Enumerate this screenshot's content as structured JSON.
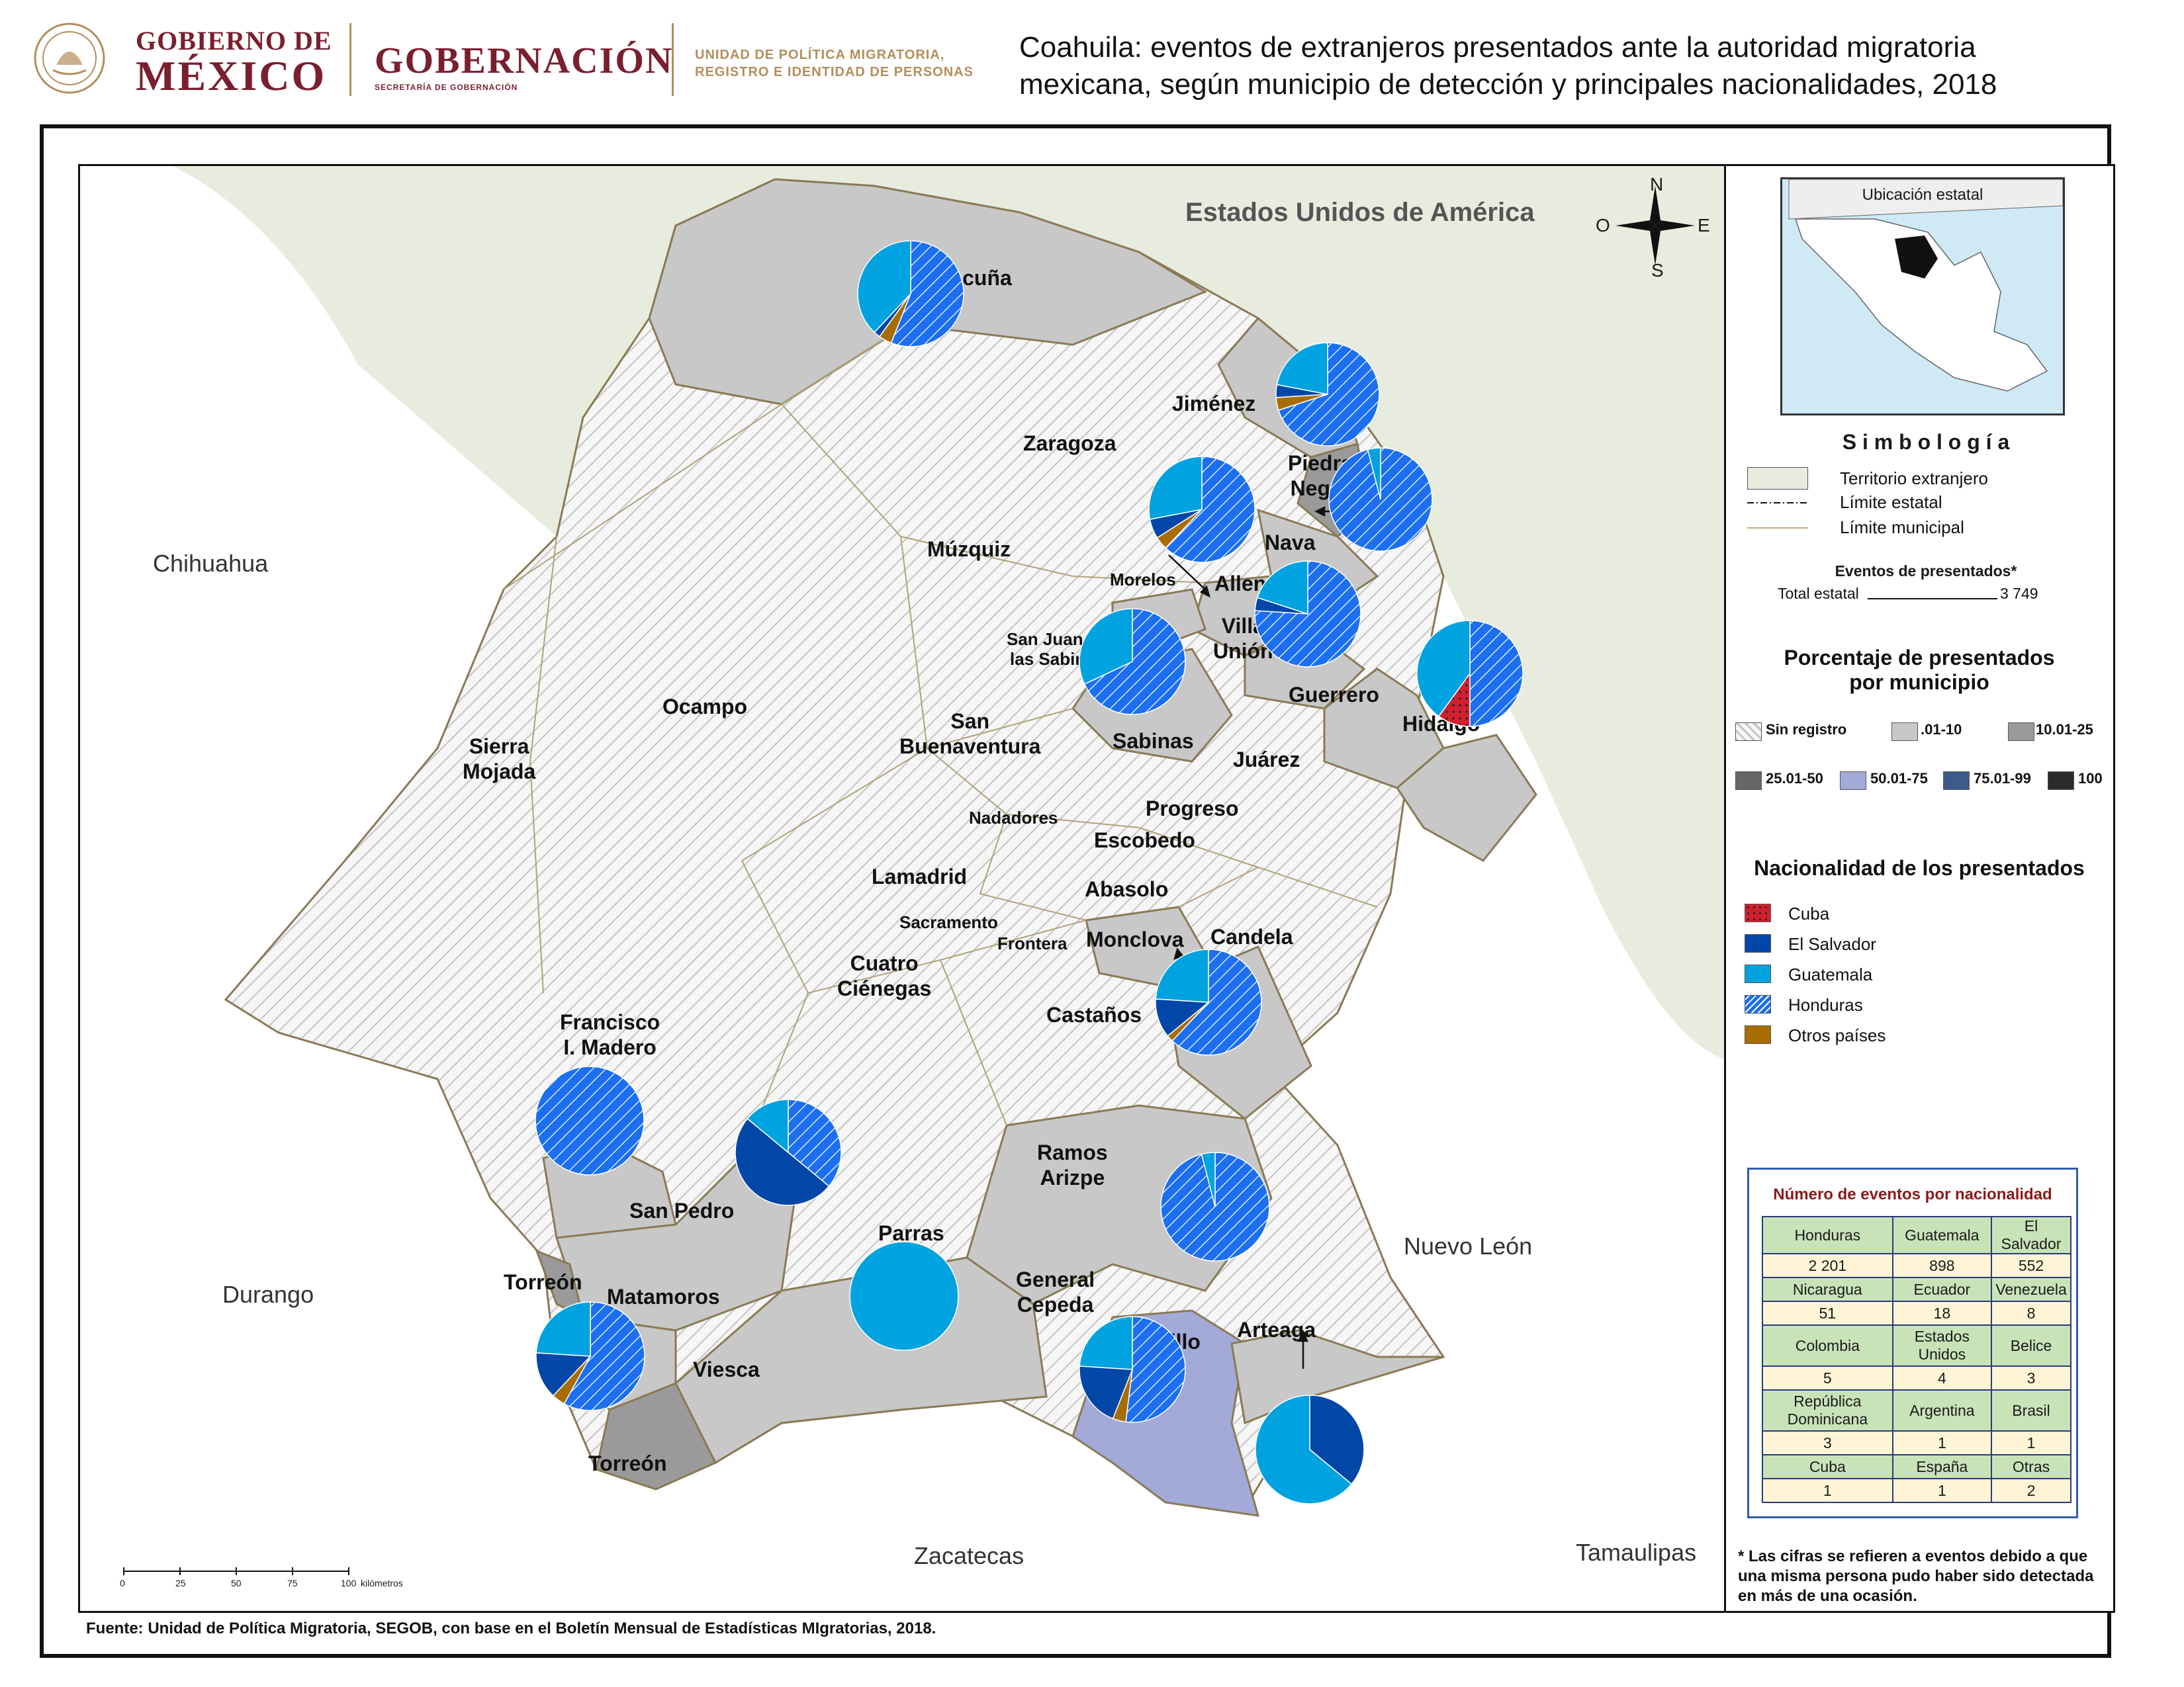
{
  "header": {
    "gobierno_de": "GOBIERNO DE",
    "mexico": "MÉXICO",
    "gobernacion": "GOBERNACIÓN",
    "secretaria": "SECRETARÍA DE GOBERNACIÓN",
    "unidad_line1": "UNIDAD DE POLÍTICA MIGRATORIA,",
    "unidad_line2": "REGISTRO E IDENTIDAD DE PERSONAS",
    "title_line1": "Coahuila: eventos de extranjeros presentados ante la autoridad migratoria",
    "title_line2": "mexicana, según municipio de detección y principales nacionalidades, 2018"
  },
  "map": {
    "outer_labels": {
      "usa": "Estados Unidos de América",
      "chihuahua": "Chihuahua",
      "durango": "Durango",
      "zacatecas": "Zacatecas",
      "nuevo_leon": "Nuevo León",
      "tamaulipas": "Tamaulipas"
    },
    "compass": {
      "n": "N",
      "s": "S",
      "e": "E",
      "o": "O"
    },
    "municipalities": {
      "acuna": "Acuña",
      "jimenez": "Jiménez",
      "zaragoza": "Zaragoza",
      "piedras_1": "Piedras",
      "piedras_2": "Negras",
      "nava": "Nava",
      "muzquiz": "Múzquiz",
      "morelos": "Morelos",
      "allende": "Allende",
      "villa_1": "Villa",
      "villa_2": "Unión",
      "sanjuan_1": "San Juan de",
      "sanjuan_2": "las Sabinas",
      "guerrero": "Guerrero",
      "hidalgo": "Hidalgo",
      "ocampo": "Ocampo",
      "sierra_1": "Sierra",
      "sierra_2": "Mojada",
      "sanbuena_1": "San",
      "sanbuena_2": "Buenaventura",
      "sabinas": "Sabinas",
      "juarez": "Juárez",
      "progreso": "Progreso",
      "nadadores": "Nadadores",
      "escobedo": "Escobedo",
      "lamadrid": "Lamadrid",
      "abasolo": "Abasolo",
      "sacramento": "Sacramento",
      "monclova": "Monclova",
      "candela": "Candela",
      "frontera": "Frontera",
      "cuatro_1": "Cuatro",
      "cuatro_2": "Ciénegas",
      "castanos": "Castaños",
      "francisco_1": "Francisco",
      "francisco_2": "I. Madero",
      "ramos_1": "Ramos",
      "ramos_2": "Arizpe",
      "sanpedro": "San Pedro",
      "parras": "Parras",
      "torreon_top": "Torreón",
      "matamoros": "Matamoros",
      "general_1": "General",
      "general_2": "Cepeda",
      "saltillo": "Saltillo",
      "arteaga": "Arteaga",
      "viesca": "Viesca",
      "torreon_bottom": "Torreón"
    },
    "pies": [
      {
        "id": "acuna",
        "honduras": 0.56,
        "guatemala": 0.38,
        "el_salvador": 0.02,
        "cuba": 0,
        "otros": 0.04
      },
      {
        "id": "jimenez",
        "honduras": 0.7,
        "guatemala": 0.22,
        "el_salvador": 0.04,
        "cuba": 0,
        "otros": 0.04
      },
      {
        "id": "piedras",
        "honduras": 0.96,
        "guatemala": 0.04,
        "el_salvador": 0,
        "cuba": 0,
        "otros": 0
      },
      {
        "id": "zaragoza",
        "honduras": 0.62,
        "guatemala": 0.28,
        "el_salvador": 0.06,
        "cuba": 0,
        "otros": 0.04
      },
      {
        "id": "villa_union",
        "honduras": 0.76,
        "guatemala": 0.2,
        "el_salvador": 0.04,
        "cuba": 0,
        "otros": 0
      },
      {
        "id": "hidalgo",
        "honduras": 0.5,
        "guatemala": 0.4,
        "el_salvador": 0,
        "cuba": 0.1,
        "otros": 0
      },
      {
        "id": "sabinas",
        "honduras": 0.68,
        "guatemala": 0.32,
        "el_salvador": 0,
        "cuba": 0,
        "otros": 0
      },
      {
        "id": "monclova",
        "honduras": 0.62,
        "guatemala": 0.24,
        "el_salvador": 0.12,
        "cuba": 0,
        "otros": 0.02
      },
      {
        "id": "francisco",
        "honduras": 1.0,
        "guatemala": 0,
        "el_salvador": 0,
        "cuba": 0,
        "otros": 0
      },
      {
        "id": "sanpedro",
        "honduras": 0.36,
        "guatemala": 0.14,
        "el_salvador": 0.5,
        "cuba": 0,
        "otros": 0
      },
      {
        "id": "ramos",
        "honduras": 0.96,
        "guatemala": 0.04,
        "el_salvador": 0,
        "cuba": 0,
        "otros": 0
      },
      {
        "id": "parras",
        "honduras": 0,
        "guatemala": 1.0,
        "el_salvador": 0,
        "cuba": 0,
        "otros": 0
      },
      {
        "id": "torreon",
        "honduras": 0.58,
        "guatemala": 0.24,
        "el_salvador": 0.14,
        "cuba": 0,
        "otros": 0.04
      },
      {
        "id": "saltillo",
        "honduras": 0.52,
        "guatemala": 0.24,
        "el_salvador": 0.2,
        "cuba": 0,
        "otros": 0.04
      },
      {
        "id": "arteaga",
        "honduras": 0,
        "guatemala": 0.64,
        "el_salvador": 0.36,
        "cuba": 0,
        "otros": 0
      }
    ],
    "scale": {
      "t0": "0",
      "t1": "25",
      "t2": "50",
      "t3": "75",
      "t4": "100",
      "unit": "kilómetros"
    }
  },
  "legend": {
    "inset_title": "Ubicación estatal",
    "symbology": "S i m b o l o g í a",
    "territorio": "Territorio extranjero",
    "limite_estatal": "Límite estatal",
    "limite_municipal": "Límite municipal",
    "eventos_head": "Eventos de presentados*",
    "total_label": "Total estatal",
    "total_value": "3 749",
    "porcentaje_1": "Porcentaje de presentados",
    "porcentaje_2": "por municipio",
    "classes": [
      "Sin registro",
      ".01-10",
      "10.01-25",
      "25.01-50",
      "50.01-75",
      "75.01-99",
      "100"
    ],
    "class_colors": [
      "#f4f4f4",
      "#c8c8c8",
      "#9a9a9a",
      "#666666",
      "#a3aad8",
      "#3c5a8a",
      "#2b2b2b"
    ],
    "nacionalidad_head": "Nacionalidad de los presentados",
    "nationalities": [
      "Cuba",
      "El Salvador",
      "Guatemala",
      "Honduras",
      "Otros países"
    ],
    "nat_colors": {
      "cuba": "#d0202f",
      "el_salvador": "#0047a8",
      "guatemala": "#00a3e0",
      "honduras": "#1b6ff0",
      "otros": "#a86d00"
    }
  },
  "table": {
    "title": "Número de eventos por nacionalidad",
    "rows": [
      {
        "h": [
          "Honduras",
          "Guatemala",
          "El Salvador"
        ],
        "v": [
          "2 201",
          "898",
          "552"
        ]
      },
      {
        "h": [
          "Nicaragua",
          "Ecuador",
          "Venezuela"
        ],
        "v": [
          "51",
          "18",
          "8"
        ]
      },
      {
        "h": [
          "Colombia",
          "Estados Unidos",
          "Belice"
        ],
        "v": [
          "5",
          "4",
          "3"
        ]
      },
      {
        "h": [
          "República Dominicana",
          "Argentina",
          "Brasil"
        ],
        "v": [
          "3",
          "1",
          "1"
        ]
      },
      {
        "h": [
          "Cuba",
          "España",
          "Otras"
        ],
        "v": [
          "1",
          "1",
          "2"
        ]
      }
    ]
  },
  "note": "* Las cifras se refieren a eventos debido a que una misma persona pudo haber sido detectada en más de una ocasión.",
  "source": "Fuente: Unidad de Política Migratoria, SEGOB, con base en el Boletín Mensual de Estadísticas MIgratorias, 2018."
}
